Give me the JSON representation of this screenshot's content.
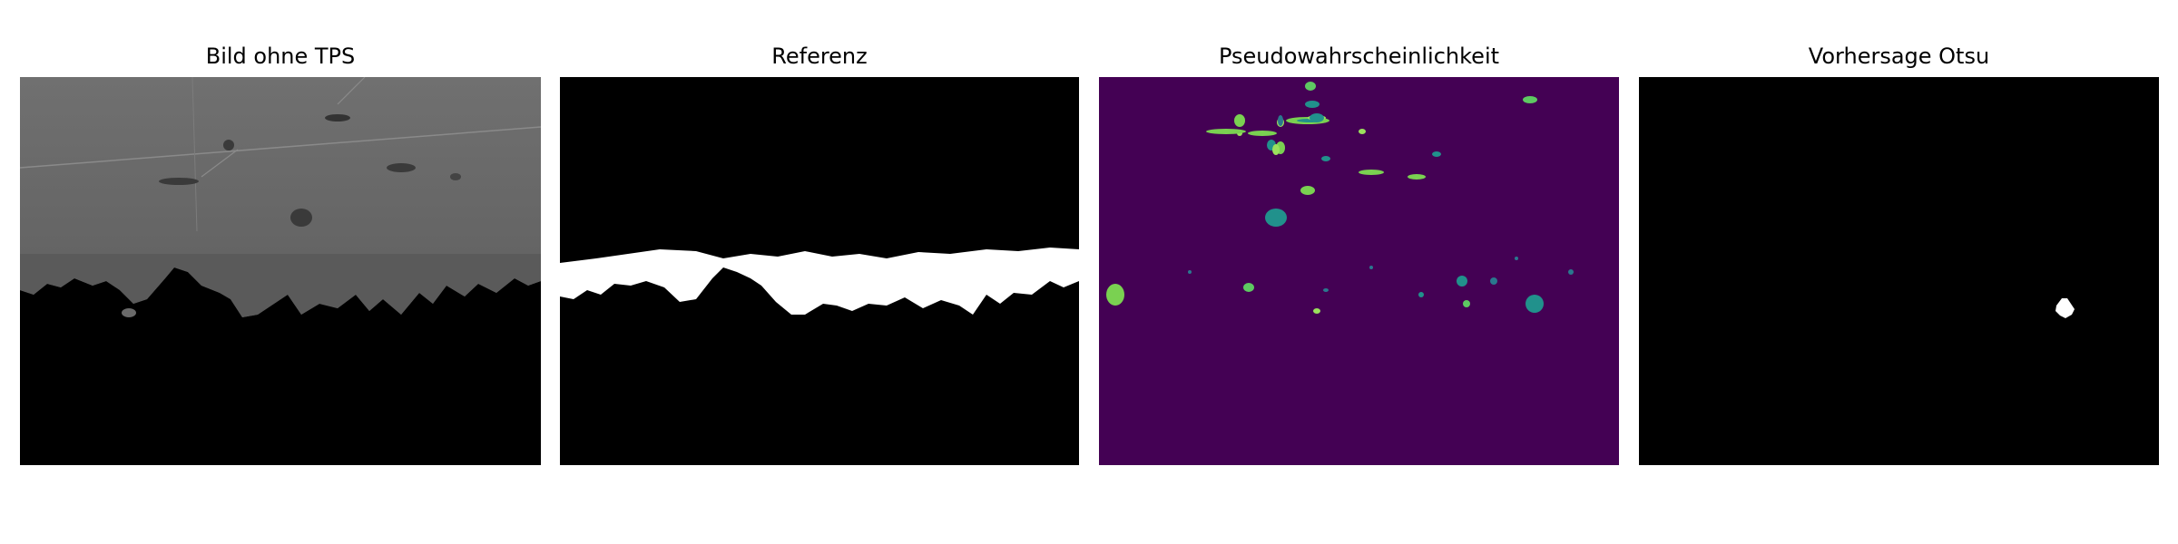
{
  "figure": {
    "panels": [
      {
        "title": "Bild ohne TPS"
      },
      {
        "title": "Referenz"
      },
      {
        "title": "Pseudowahrscheinlichkeit"
      },
      {
        "title": "Vorhersage Otsu"
      }
    ]
  },
  "colors": {
    "background": "#ffffff",
    "micrograph_gray": "#6b6b6b",
    "mask_black": "#000000",
    "mask_white": "#ffffff",
    "viridis_low": "#440154",
    "viridis_mid": "#21918c",
    "viridis_high": "#9be15d"
  }
}
